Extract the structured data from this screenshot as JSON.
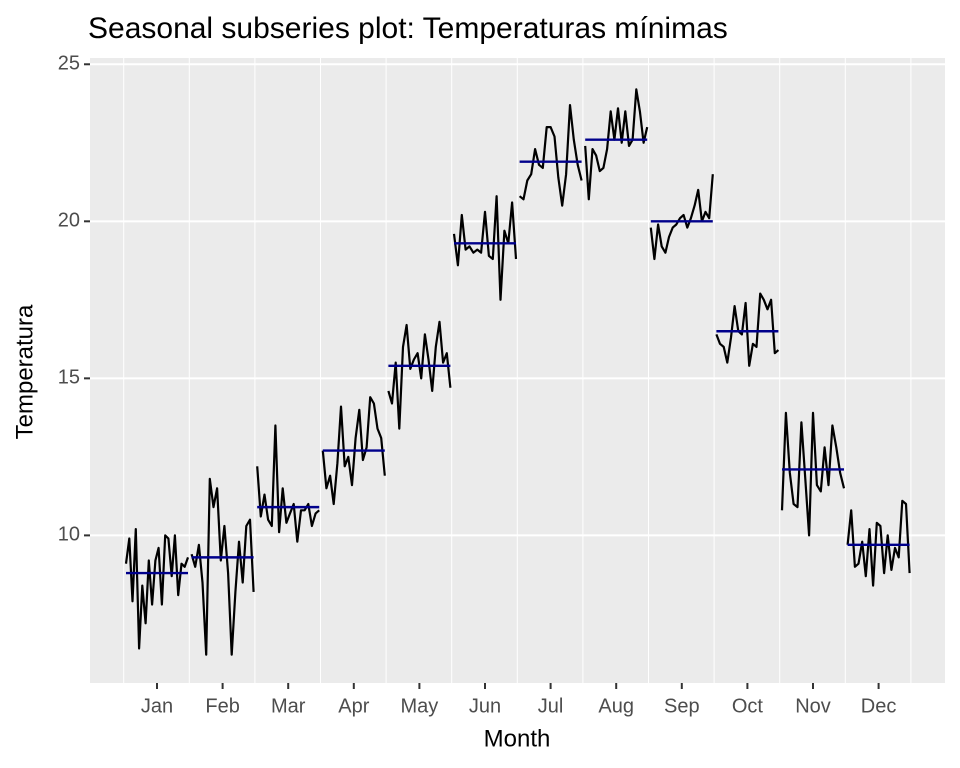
{
  "chart_data": {
    "type": "subseries",
    "title": "Seasonal subseries plot: Temperaturas mínimas",
    "x_label": "Month",
    "y_label": "Temperatura",
    "categories": [
      "Jan",
      "Feb",
      "Mar",
      "Apr",
      "May",
      "Jun",
      "Jul",
      "Aug",
      "Sep",
      "Oct",
      "Nov",
      "Dec"
    ],
    "values": [
      [
        9.1,
        9.9,
        7.9,
        10.2,
        6.4,
        8.4,
        7.2,
        9.2,
        7.8,
        9.2,
        9.6,
        7.8,
        10.0,
        9.9,
        8.7,
        10.0,
        8.1,
        9.1,
        9.0,
        9.3
      ],
      [
        9.4,
        9.0,
        9.7,
        8.5,
        6.2,
        11.8,
        10.9,
        11.5,
        9.2,
        10.3,
        8.8,
        6.2,
        8.2,
        9.8,
        8.5,
        10.3,
        10.5,
        8.2
      ],
      [
        12.2,
        10.6,
        11.3,
        10.5,
        10.3,
        13.5,
        10.1,
        11.5,
        10.4,
        10.7,
        11.0,
        9.8,
        10.8,
        10.8,
        11.0,
        10.3,
        10.7,
        10.8
      ],
      [
        12.7,
        11.5,
        11.9,
        11.0,
        12.3,
        14.1,
        12.2,
        12.5,
        11.6,
        13.1,
        14.0,
        12.4,
        12.8,
        14.4,
        14.2,
        13.4,
        13.1,
        11.9
      ],
      [
        14.6,
        14.2,
        15.5,
        13.4,
        16.0,
        16.7,
        15.3,
        15.6,
        15.8,
        15.0,
        16.4,
        15.6,
        14.6,
        16.0,
        16.8,
        15.5,
        15.8,
        14.7
      ],
      [
        19.6,
        18.6,
        20.2,
        19.1,
        19.2,
        19.0,
        19.1,
        19.0,
        20.3,
        18.9,
        18.8,
        20.8,
        17.5,
        19.7,
        19.3,
        20.6,
        18.8
      ],
      [
        20.8,
        20.7,
        21.3,
        21.5,
        22.3,
        21.8,
        21.7,
        23.0,
        23.0,
        22.7,
        21.4,
        20.5,
        21.5,
        23.7,
        22.6,
        21.8,
        21.3
      ],
      [
        22.4,
        20.7,
        22.3,
        22.1,
        21.6,
        21.7,
        22.3,
        23.5,
        22.6,
        23.6,
        22.5,
        23.5,
        22.4,
        22.6,
        24.2,
        23.5,
        22.5,
        23.0
      ],
      [
        19.8,
        18.8,
        19.9,
        19.2,
        19.0,
        19.5,
        19.8,
        19.9,
        20.1,
        20.2,
        19.8,
        20.1,
        20.5,
        21.0,
        20.0,
        20.3,
        20.1,
        21.5
      ],
      [
        16.4,
        16.1,
        16.0,
        15.5,
        16.3,
        17.3,
        16.5,
        16.4,
        17.4,
        15.4,
        16.1,
        16.0,
        17.7,
        17.5,
        17.2,
        17.5,
        15.8,
        15.9
      ],
      [
        10.8,
        13.9,
        12.0,
        11.0,
        10.9,
        13.6,
        11.8,
        10.0,
        13.9,
        11.6,
        11.4,
        12.8,
        11.6,
        13.5,
        12.8,
        12.0,
        11.5
      ],
      [
        9.7,
        10.8,
        9.0,
        9.1,
        9.8,
        8.7,
        10.2,
        8.4,
        10.4,
        10.3,
        8.8,
        10.0,
        8.9,
        9.6,
        9.3,
        11.1,
        11.0,
        8.8
      ]
    ],
    "means": [
      8.8,
      9.3,
      10.9,
      12.7,
      15.4,
      19.3,
      21.9,
      22.6,
      20.0,
      16.5,
      12.1,
      9.7
    ],
    "color": "#000000",
    "mean_color": "#00008b",
    "ylim": [
      5.3,
      25.2
    ],
    "yticks": [
      10,
      15,
      20,
      25
    ],
    "grid": true
  }
}
